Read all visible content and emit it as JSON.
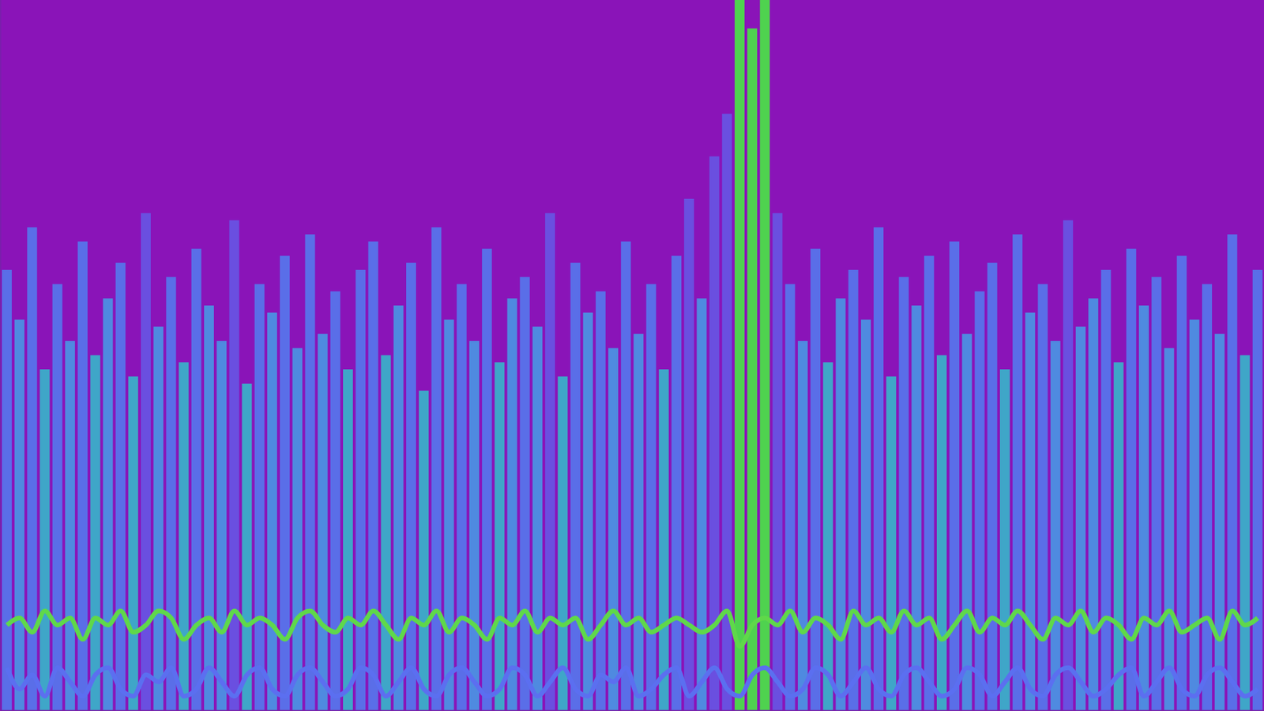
{
  "chart_data": {
    "type": "bar",
    "tick_labels": false,
    "ylim": [
      0,
      100
    ],
    "categories": [
      null,
      null,
      null,
      null,
      null,
      null,
      null,
      null,
      null,
      null,
      null,
      null,
      null,
      null,
      null,
      null,
      null,
      null,
      null,
      null,
      null,
      null,
      null,
      null,
      null,
      null,
      null,
      null,
      null,
      null,
      null,
      null,
      null,
      null,
      null,
      null,
      null,
      null,
      null,
      null,
      null,
      null,
      null,
      null,
      null,
      null,
      null,
      null,
      null,
      null,
      null,
      null,
      null,
      null,
      null,
      null,
      null,
      null,
      null,
      null,
      null,
      null,
      null,
      null,
      null,
      null,
      null,
      null,
      null,
      null,
      null,
      null,
      null,
      null,
      null,
      null,
      null,
      null,
      null,
      null,
      null,
      null,
      null,
      null,
      null,
      null,
      null,
      null,
      null,
      null,
      null,
      null,
      null,
      null,
      null,
      null,
      null,
      null,
      null,
      null
    ],
    "series": [
      {
        "type": "bar",
        "values": [
          62,
          55,
          68,
          48,
          60,
          52,
          66,
          50,
          58,
          63,
          47,
          70,
          54,
          61,
          49,
          65,
          57,
          52,
          69,
          46,
          60,
          56,
          64,
          51,
          67,
          53,
          59,
          48,
          62,
          66,
          50,
          57,
          63,
          45,
          68,
          55,
          60,
          52,
          65,
          49,
          58,
          61,
          54,
          70,
          47,
          63,
          56,
          59,
          51,
          66,
          53,
          60,
          48,
          64,
          72,
          58,
          78,
          84,
          100,
          96,
          100,
          70,
          60,
          52,
          65,
          49,
          58,
          62,
          55,
          68,
          47,
          61,
          57,
          64,
          50,
          66,
          53,
          59,
          63,
          48,
          67,
          56,
          60,
          52,
          69,
          54,
          58,
          62,
          49,
          65,
          57,
          61,
          51,
          64,
          55,
          60,
          53,
          67,
          50,
          62
        ]
      },
      {
        "type": "line",
        "color": "#5fd84a",
        "values": [
          12,
          13,
          11,
          14,
          12,
          13,
          10,
          13,
          12,
          14,
          11,
          12,
          14,
          13,
          10,
          12,
          13,
          11,
          14,
          12,
          13,
          12,
          10,
          13,
          14,
          12,
          11,
          13,
          12,
          14,
          12,
          10,
          13,
          12,
          14,
          11,
          13,
          12,
          10,
          13,
          12,
          14,
          11,
          13,
          12,
          13,
          10,
          12,
          14,
          12,
          13,
          11,
          12,
          13,
          12,
          11,
          12,
          14,
          9,
          12,
          13,
          12,
          14,
          11,
          13,
          12,
          10,
          14,
          12,
          13,
          11,
          14,
          12,
          13,
          10,
          12,
          14,
          11,
          13,
          12,
          14,
          12,
          10,
          13,
          12,
          14,
          11,
          13,
          12,
          10,
          13,
          12,
          14,
          11,
          12,
          13,
          10,
          14,
          12,
          13
        ]
      },
      {
        "type": "line",
        "color": "#5b6ff0",
        "values": [
          6,
          3,
          5,
          2,
          6,
          4,
          2,
          5,
          6,
          3,
          2,
          5,
          4,
          6,
          2,
          3,
          6,
          4,
          2,
          5,
          6,
          3,
          2,
          5,
          6,
          4,
          2,
          3,
          6,
          5,
          2,
          4,
          6,
          3,
          2,
          5,
          6,
          4,
          2,
          3,
          6,
          5,
          2,
          4,
          6,
          3,
          2,
          5,
          4,
          6,
          2,
          3,
          5,
          6,
          2,
          4,
          6,
          3,
          2,
          5,
          6,
          4,
          2,
          3,
          6,
          5,
          2,
          4,
          6,
          3,
          2,
          5,
          6,
          4,
          2,
          3,
          6,
          5,
          2,
          4,
          6,
          3,
          2,
          5,
          6,
          4,
          2,
          3,
          5,
          6,
          2,
          4,
          6,
          3,
          2,
          5,
          6,
          4,
          2,
          3
        ]
      }
    ]
  }
}
